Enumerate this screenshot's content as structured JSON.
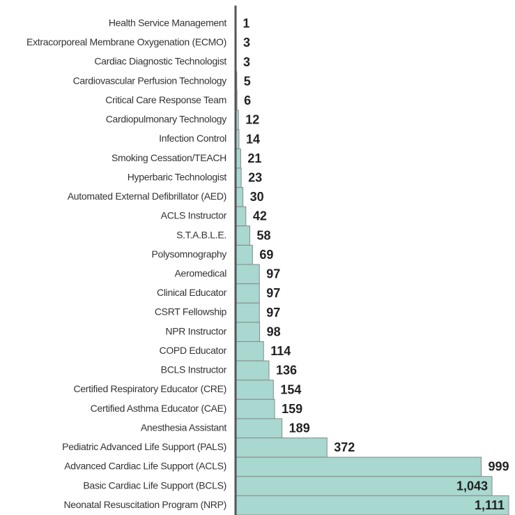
{
  "chart_data": {
    "type": "barh",
    "categories": [
      "Health Service Management",
      "Extracorporeal Membrane Oxygenation (ECMO)",
      "Cardiac Diagnostic Technologist",
      "Cardiovascular Perfusion Technology",
      "Critical Care Response Team",
      "Cardiopulmonary Technology",
      "Infection Control",
      "Smoking Cessation/TEACH",
      "Hyperbaric Technologist",
      "Automated External Defibrillator (AED)",
      "ACLS Instructor",
      "S.T.A.B.L.E.",
      "Polysomnography",
      "Aeromedical",
      "Clinical Educator",
      "CSRT Fellowship",
      "NPR Instructor",
      "COPD Educator",
      "BCLS Instructor",
      "Certified Respiratory Educator (CRE)",
      "Certified Asthma Educator (CAE)",
      "Anesthesia Assistant",
      "Pediatric Advanced Life Support (PALS)",
      "Advanced Cardiac Life Support (ACLS)",
      "Basic Cardiac Life Support (BCLS)",
      "Neonatal Resuscitation  Program (NRP)"
    ],
    "values": [
      1,
      3,
      3,
      5,
      6,
      12,
      14,
      21,
      23,
      30,
      42,
      58,
      69,
      97,
      97,
      97,
      98,
      114,
      136,
      154,
      159,
      189,
      372,
      999,
      1043,
      1111
    ],
    "value_labels": [
      "1",
      "3",
      "3",
      "5",
      "6",
      "12",
      "14",
      "21",
      "23",
      "30",
      "42",
      "58",
      "69",
      "97",
      "97",
      "97",
      "98",
      "114",
      "136",
      "154",
      "159",
      "189",
      "372",
      "999",
      "1,043",
      "1,111"
    ],
    "color": "#a8d8d0",
    "xlim": [
      0,
      1111
    ]
  }
}
